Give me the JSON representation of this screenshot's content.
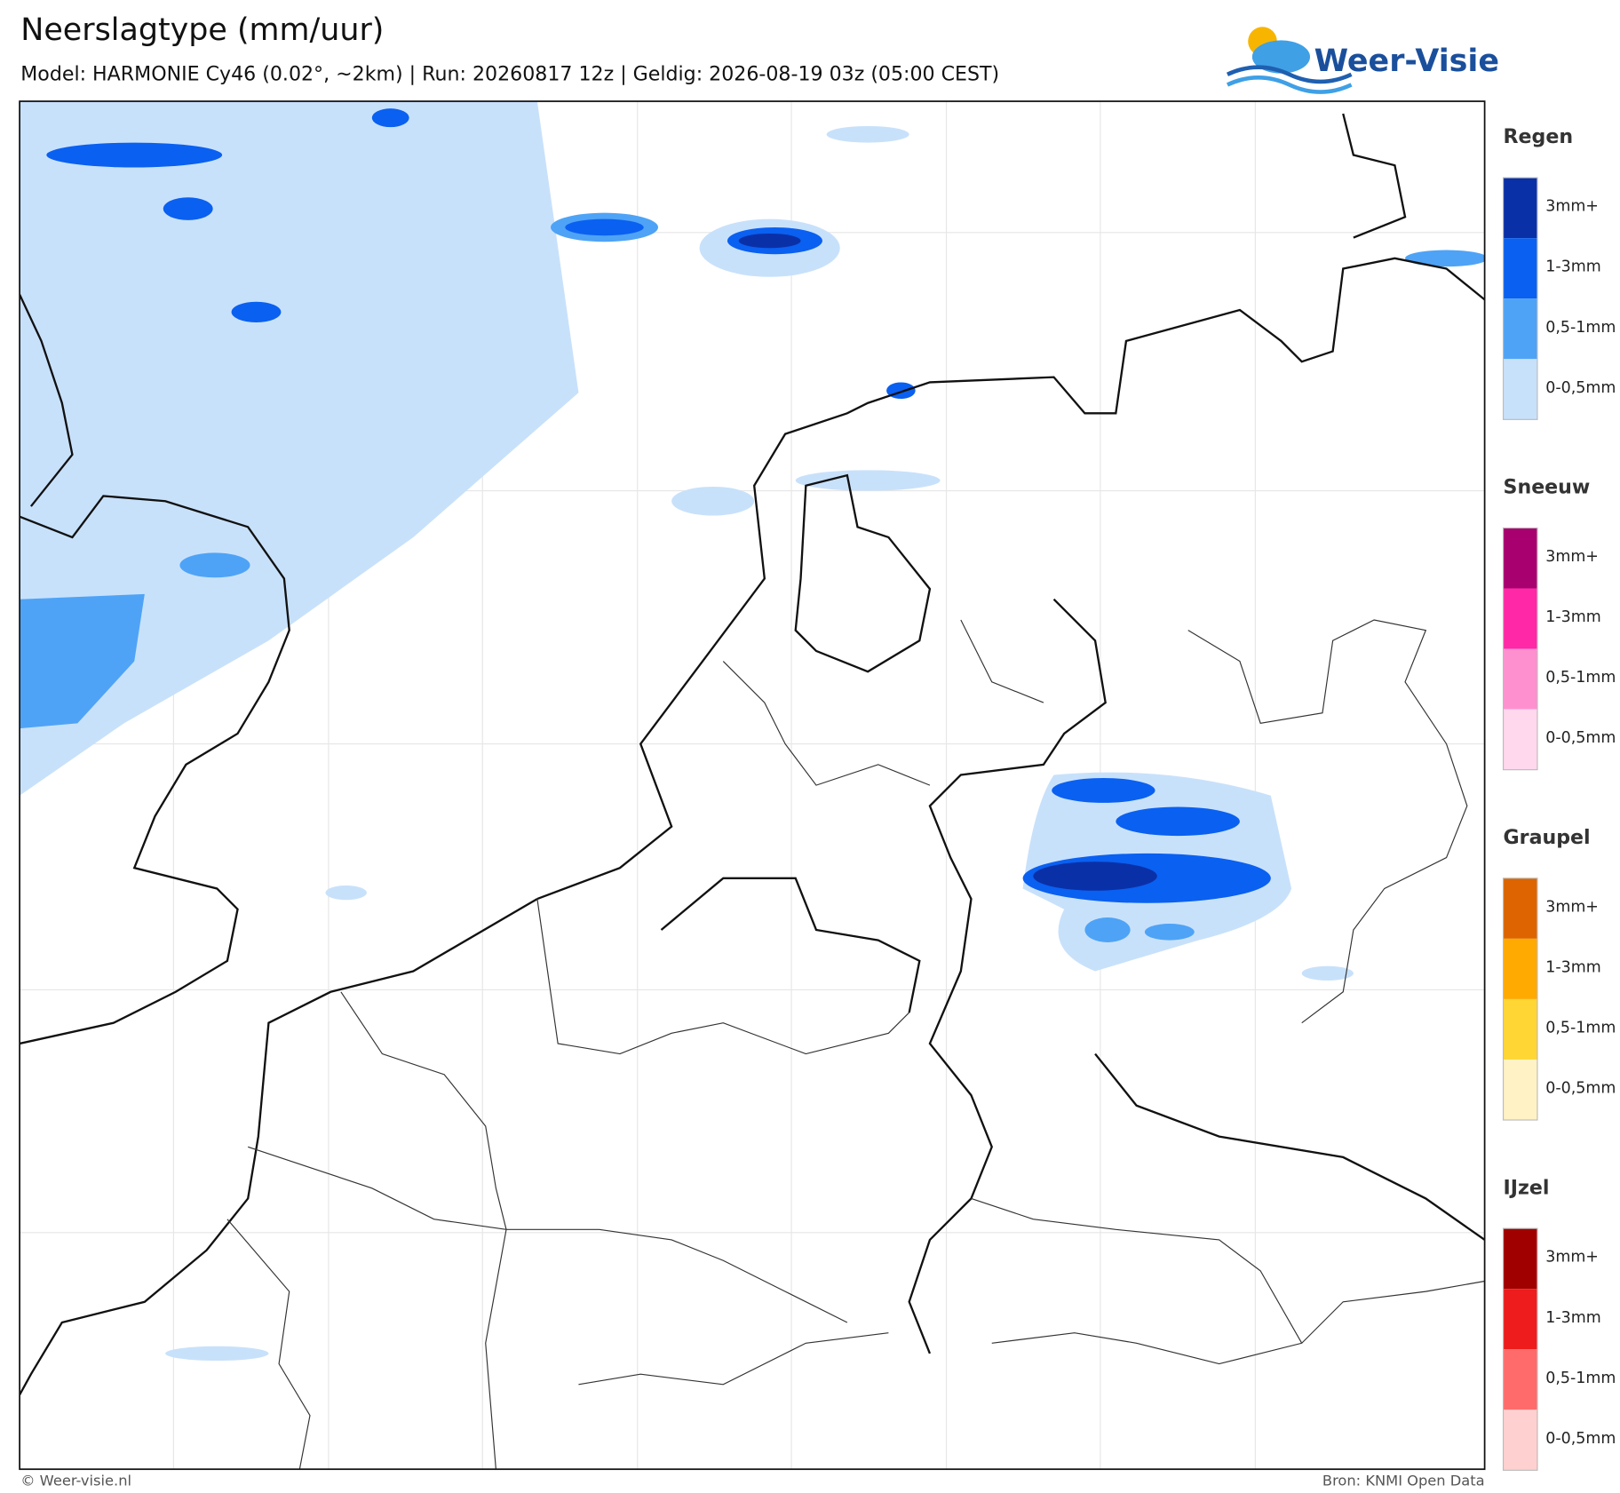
{
  "header": {
    "title": "Neerslagtype (mm/uur)",
    "subtitle": "Model: HARMONIE Cy46 (0.02°, ~2km)  |  Run: 20260817 12z  |  Geldig: 2026-08-19 03z (05:00 CEST)"
  },
  "logo": {
    "text": "Weer-Visie"
  },
  "legend": {
    "groups": [
      {
        "title": "Regen",
        "items": [
          {
            "label": "3mm+",
            "color": "#0a30a8"
          },
          {
            "label": "1-3mm",
            "color": "#0a60f0"
          },
          {
            "label": "0,5-1mm",
            "color": "#4ea3f6"
          },
          {
            "label": "0-0,5mm",
            "color": "#c8e1fb"
          }
        ]
      },
      {
        "title": "Sneeuw",
        "items": [
          {
            "label": "3mm+",
            "color": "#a8006e"
          },
          {
            "label": "1-3mm",
            "color": "#ff28a6"
          },
          {
            "label": "0,5-1mm",
            "color": "#ff90d0"
          },
          {
            "label": "0-0,5mm",
            "color": "#ffd8ee"
          }
        ]
      },
      {
        "title": "Graupel",
        "items": [
          {
            "label": "3mm+",
            "color": "#dd6400"
          },
          {
            "label": "1-3mm",
            "color": "#ffaa00"
          },
          {
            "label": "0,5-1mm",
            "color": "#ffd633"
          },
          {
            "label": "0-0,5mm",
            "color": "#fff3c6"
          }
        ]
      },
      {
        "title": "IJzel",
        "items": [
          {
            "label": "3mm+",
            "color": "#a00000"
          },
          {
            "label": "1-3mm",
            "color": "#ee1c1c"
          },
          {
            "label": "0,5-1mm",
            "color": "#ff6b6b"
          },
          {
            "label": "0-0,5mm",
            "color": "#ffd0d0"
          }
        ]
      }
    ]
  },
  "footer": {
    "left": "© Weer-visie.nl",
    "right": "Bron: KNMI Open Data"
  }
}
